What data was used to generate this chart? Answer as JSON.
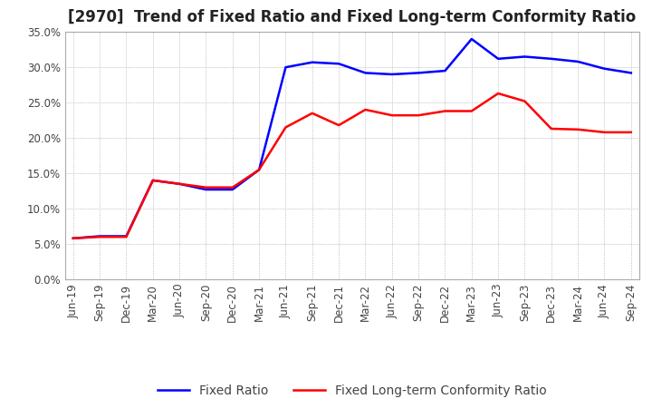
{
  "title": "[2970]  Trend of Fixed Ratio and Fixed Long-term Conformity Ratio",
  "x_labels": [
    "Jun-19",
    "Sep-19",
    "Dec-19",
    "Mar-20",
    "Jun-20",
    "Sep-20",
    "Dec-20",
    "Mar-21",
    "Jun-21",
    "Sep-21",
    "Dec-21",
    "Mar-22",
    "Jun-22",
    "Sep-22",
    "Dec-22",
    "Mar-23",
    "Jun-23",
    "Sep-23",
    "Dec-23",
    "Mar-24",
    "Jun-24",
    "Sep-24"
  ],
  "fixed_ratio": [
    5.8,
    6.1,
    6.1,
    14.0,
    13.5,
    12.7,
    12.7,
    15.5,
    30.0,
    30.7,
    30.5,
    29.2,
    29.0,
    29.2,
    29.5,
    34.0,
    31.2,
    31.5,
    31.2,
    30.8,
    29.8,
    29.2
  ],
  "fixed_lt_ratio": [
    5.8,
    6.0,
    6.0,
    14.0,
    13.5,
    13.0,
    13.0,
    15.5,
    21.5,
    23.5,
    21.8,
    24.0,
    23.2,
    23.2,
    23.8,
    23.8,
    26.3,
    25.2,
    21.3,
    21.2,
    20.8,
    20.8
  ],
  "fixed_ratio_color": "#0000FF",
  "fixed_lt_ratio_color": "#FF0000",
  "ylim": [
    0.0,
    35.0
  ],
  "yticks": [
    0.0,
    5.0,
    10.0,
    15.0,
    20.0,
    25.0,
    30.0,
    35.0
  ],
  "background_color": "#FFFFFF",
  "grid_color": "#AAAAAA",
  "title_fontsize": 12,
  "legend_fontsize": 10,
  "tick_fontsize": 8.5
}
